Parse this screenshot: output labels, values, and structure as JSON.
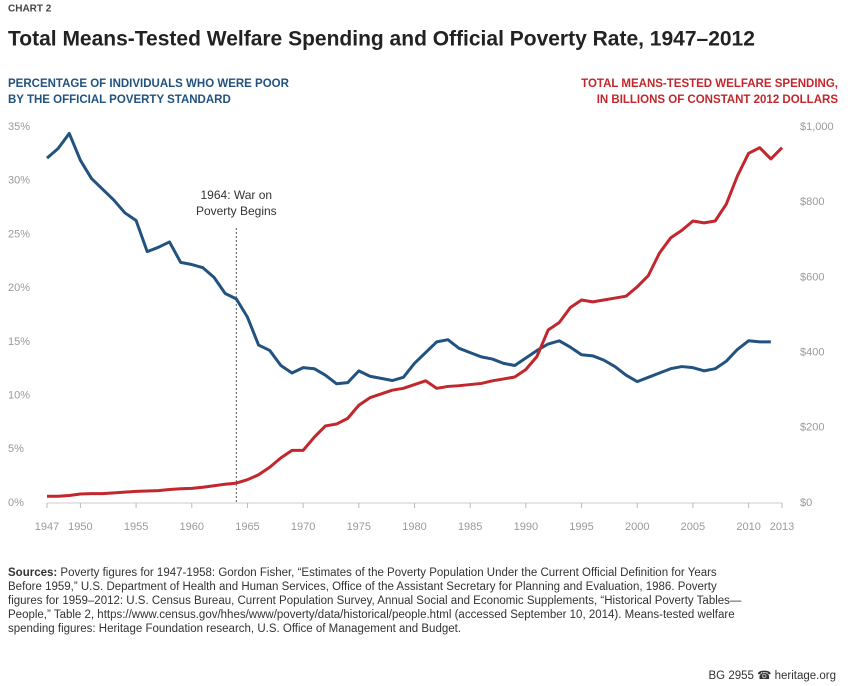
{
  "chart_data": {
    "type": "line",
    "kicker": "CHART 2",
    "title": "Total Means-Tested Welfare Spending and Official Poverty Rate, 1947–2012",
    "y_label": [
      "PERCENTAGE OF INDIVIDUALS WHO WERE POOR",
      "BY THE OFFICIAL POVERTY STANDARD"
    ],
    "y2_label": [
      "TOTAL MEANS-TESTED WELFARE SPENDING,",
      "IN BILLIONS OF CONSTANT 2012 DOLLARS"
    ],
    "annotation": {
      "lines": [
        "1964: War on",
        "Poverty Begins"
      ],
      "x": 1964
    },
    "x": [
      1947,
      1948,
      1949,
      1950,
      1951,
      1952,
      1953,
      1954,
      1955,
      1956,
      1957,
      1958,
      1959,
      1960,
      1961,
      1962,
      1963,
      1964,
      1965,
      1966,
      1967,
      1968,
      1969,
      1970,
      1971,
      1972,
      1973,
      1974,
      1975,
      1976,
      1977,
      1978,
      1979,
      1980,
      1981,
      1982,
      1983,
      1984,
      1985,
      1986,
      1987,
      1988,
      1989,
      1990,
      1991,
      1992,
      1993,
      1994,
      1995,
      1996,
      1997,
      1998,
      1999,
      2000,
      2001,
      2002,
      2003,
      2004,
      2005,
      2006,
      2007,
      2008,
      2009,
      2010,
      2011,
      2012,
      2013
    ],
    "xlim": [
      1947,
      2013
    ],
    "xticks": [
      1947,
      1950,
      1955,
      1960,
      1965,
      1970,
      1975,
      1980,
      1985,
      1990,
      1995,
      2000,
      2005,
      2010,
      2013
    ],
    "ylim": [
      0,
      35
    ],
    "yticks": [
      {
        "value": 0,
        "label": "0%"
      },
      {
        "value": 5,
        "label": "5%"
      },
      {
        "value": 10,
        "label": "10%"
      },
      {
        "value": 15,
        "label": "15%"
      },
      {
        "value": 20,
        "label": "20%"
      },
      {
        "value": 25,
        "label": "25%"
      },
      {
        "value": 30,
        "label": "30%"
      },
      {
        "value": 35,
        "label": "35%"
      }
    ],
    "y2lim": [
      0,
      1000
    ],
    "y2ticks": [
      {
        "value": 0,
        "label": "$0"
      },
      {
        "value": 200,
        "label": "$200"
      },
      {
        "value": 400,
        "label": "$400"
      },
      {
        "value": 600,
        "label": "$600"
      },
      {
        "value": 800,
        "label": "$800"
      },
      {
        "value": 1000,
        "label": "$1,000"
      }
    ],
    "grid": false,
    "series": [
      {
        "color": "#22527f",
        "axis": "y",
        "values": [
          32.1,
          33.0,
          34.4,
          31.9,
          30.2,
          29.2,
          28.2,
          27.0,
          26.3,
          23.4,
          23.8,
          24.3,
          22.4,
          22.2,
          21.9,
          21.0,
          19.5,
          19.0,
          17.3,
          14.7,
          14.2,
          12.8,
          12.1,
          12.6,
          12.5,
          11.9,
          11.1,
          11.2,
          12.3,
          11.8,
          11.6,
          11.4,
          11.7,
          13.0,
          14.0,
          15.0,
          15.2,
          14.4,
          14.0,
          13.6,
          13.4,
          13.0,
          12.8,
          13.5,
          14.2,
          14.8,
          15.1,
          14.5,
          13.8,
          13.7,
          13.3,
          12.7,
          11.9,
          11.3,
          11.7,
          12.1,
          12.5,
          12.7,
          12.6,
          12.3,
          12.5,
          13.2,
          14.3,
          15.1,
          15.0,
          15.0,
          null
        ]
      },
      {
        "color": "#c1272d",
        "axis": "y2",
        "values": [
          18,
          18,
          20,
          24,
          25,
          25,
          27,
          29,
          31,
          32,
          33,
          36,
          38,
          39,
          42,
          46,
          50,
          53,
          62,
          75,
          95,
          120,
          140,
          140,
          175,
          205,
          210,
          225,
          260,
          280,
          290,
          300,
          305,
          315,
          325,
          305,
          310,
          312,
          315,
          318,
          325,
          330,
          335,
          355,
          390,
          460,
          480,
          520,
          540,
          535,
          540,
          545,
          550,
          575,
          605,
          665,
          705,
          725,
          750,
          745,
          750,
          795,
          870,
          930,
          945,
          915,
          945
        ]
      }
    ],
    "sources_label": "Sources:",
    "sources": "Poverty figures for 1947-1958: Gordon Fisher, “Estimates of the Poverty Population Under the Current Official Definition for Years Before 1959,” U.S. Department of Health and Human Services, Office of the Assistant Secretary for Planning and Evaluation, 1986. Poverty figures for 1959–2012: U.S. Census Bureau, Current Population Survey, Annual Social and Economic Supplements, “Historical Poverty Tables—People,” Table 2, https://www.census.gov/hhes/www/poverty/data/historical/people.html (accessed September 10, 2014). Means-tested welfare spending figures: Heritage Foundation research, U.S. Office of Management and Budget.",
    "footer": "BG 2955  ☎ heritage.org"
  }
}
